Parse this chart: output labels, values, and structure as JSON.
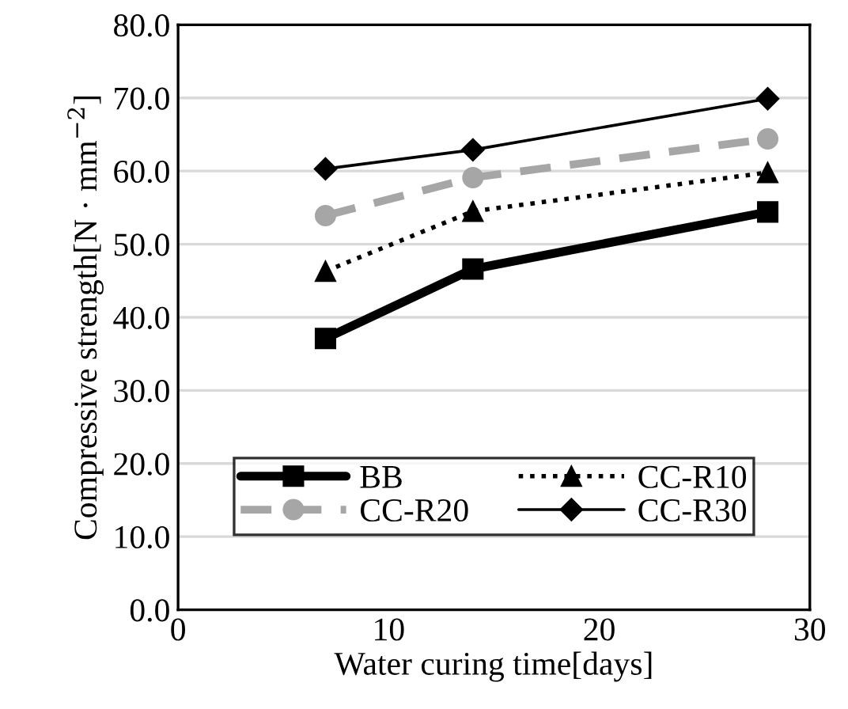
{
  "chart_data": {
    "type": "line",
    "xlabel": "Water curing time[days]",
    "ylabel": "Compressive strength[N · mm$^{−2}$]",
    "x": [
      7,
      14,
      28
    ],
    "series": [
      {
        "name": "BB",
        "color": "#000000",
        "values": [
          37.1,
          46.6,
          54.4
        ],
        "marker": "square",
        "line_style": "solid"
      },
      {
        "name": "CC-R10",
        "color": "#000000",
        "values": [
          46.3,
          54.5,
          59.8
        ],
        "marker": "triangle",
        "line_style": "dotted"
      },
      {
        "name": "CC-R20",
        "color": "#a6a6a6",
        "values": [
          53.9,
          59.1,
          64.4
        ],
        "marker": "circle",
        "line_style": "dashed"
      },
      {
        "name": "CC-R30",
        "color": "#000000",
        "values": [
          60.3,
          62.9,
          69.9
        ],
        "marker": "diamond",
        "line_style": "solid"
      }
    ],
    "xlim": [
      0,
      30
    ],
    "xticks": [
      0,
      10,
      20,
      30
    ],
    "ylim": [
      0,
      80
    ],
    "yticks": [
      {
        "value": 0,
        "label": "0.0"
      },
      {
        "value": 10,
        "label": "10.0"
      },
      {
        "value": 20,
        "label": "20.0"
      },
      {
        "value": 30,
        "label": "30.0"
      },
      {
        "value": 40,
        "label": "40.0"
      },
      {
        "value": 50,
        "label": "50.0"
      },
      {
        "value": 60,
        "label": "60.0"
      },
      {
        "value": 70,
        "label": "70.0"
      },
      {
        "value": 80,
        "label": "80.0"
      }
    ],
    "grid": "y",
    "legend": "bottom"
  }
}
